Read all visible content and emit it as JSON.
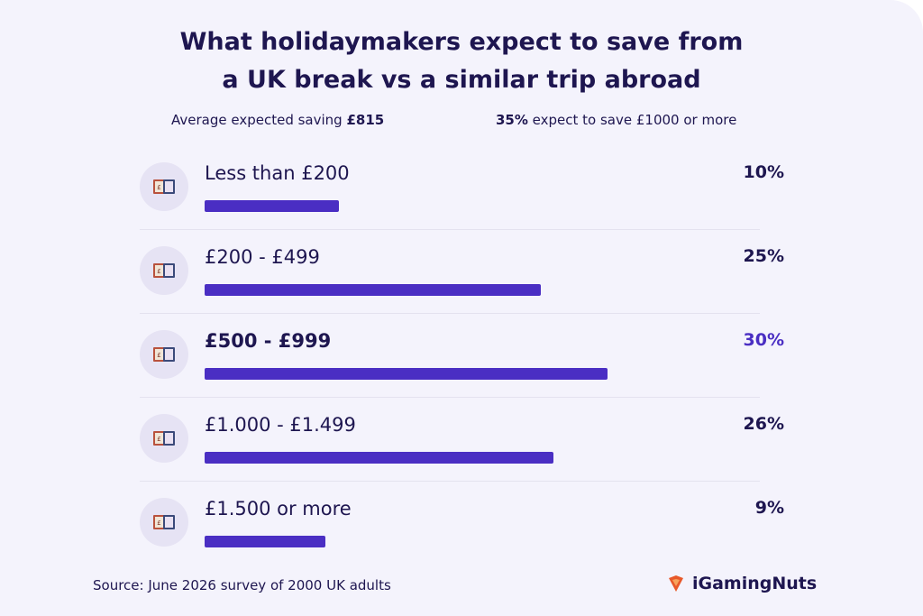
{
  "colors": {
    "background": "#f4f3fc",
    "text": "#1e1650",
    "bar": "#4a2ec3",
    "highlight": "#4a2ec3"
  },
  "title": {
    "line1": "What holidaymakers expect to save from",
    "line2": "a UK break vs a similar trip abroad"
  },
  "stats": {
    "left_text": "Average expected saving ",
    "left_value": "£815",
    "right_value": "35%",
    "right_text": " expect to save £1000 or more"
  },
  "chart_data": {
    "type": "bar",
    "orientation": "horizontal",
    "title": "What holidaymakers expect to save from a UK break vs a similar trip abroad",
    "categories": [
      "Less than £200",
      "£200 - £499",
      "£500 - £999",
      "£1.000 - £1.499",
      "£1.500 or more"
    ],
    "values": [
      10,
      25,
      30,
      26,
      9
    ],
    "value_labels": [
      "10%",
      "25%",
      "30%",
      "26%",
      "9%"
    ],
    "highlighted_index": 2,
    "icon": "money-wallet-icon",
    "unit": "%"
  },
  "footer": {
    "source": "Source: June 2026 survey of 2000 UK adults",
    "brand": "iGamingNuts",
    "brand_icon": "nut-logo-icon"
  }
}
